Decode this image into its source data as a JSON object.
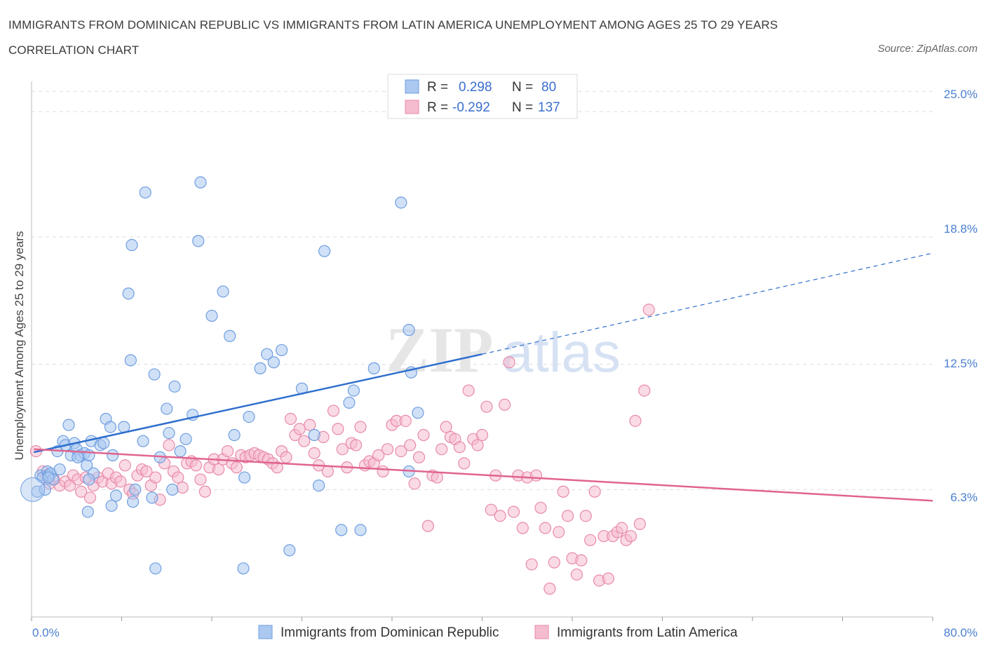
{
  "title": "IMMIGRANTS FROM DOMINICAN REPUBLIC VS IMMIGRANTS FROM LATIN AMERICA UNEMPLOYMENT AMONG AGES 25 TO 29 YEARS CORRELATION CHART",
  "source": "Source: ZipAtlas.com",
  "watermark": {
    "zip": "ZIP",
    "atlas": "atlas"
  },
  "colors": {
    "blue_fill": "#aac8f0",
    "blue_stroke": "#6f9ee0",
    "blue_line": "#2f6fce",
    "pink_fill": "#f5bcd0",
    "pink_stroke": "#e88aaa",
    "pink_line": "#e0648f",
    "axis_text": "#4a7fcf",
    "grid": "#dddddd"
  },
  "stats": [
    {
      "r_label": "R =",
      "r_value": "0.298",
      "n_label": "N =",
      "n_value": "80"
    },
    {
      "r_label": "R =",
      "r_value": "-0.292",
      "n_label": "N =",
      "n_value": "137"
    }
  ],
  "chart_data": {
    "type": "scatter",
    "title": "IMMIGRANTS FROM DOMINICAN REPUBLIC VS IMMIGRANTS FROM LATIN AMERICA UNEMPLOYMENT AMONG AGES 25 TO 29 YEARS CORRELATION CHART",
    "xlabel": "",
    "ylabel": "Unemployment Among Ages 25 to 29 years",
    "xlim": [
      0,
      80
    ],
    "ylim": [
      0,
      26.5
    ],
    "x_tick_labels": [
      "0.0%",
      "80.0%"
    ],
    "y_ticks": [
      6.3,
      12.5,
      18.8,
      25.0
    ],
    "y_tick_labels": [
      "6.3%",
      "12.5%",
      "18.8%",
      "25.0%"
    ],
    "grid": true,
    "legend_position": "bottom",
    "series": [
      {
        "name": "Immigrants from Dominican Republic",
        "color": "#6f9ee0",
        "trend": {
          "x0": 0.2,
          "y0": 8.15,
          "x1": 40,
          "y1": 13.0,
          "dashed_to_x": 80,
          "dashed_to_y": 18.0
        },
        "points": [
          [
            0.5,
            6.2
          ],
          [
            0.8,
            7.0
          ],
          [
            1.0,
            6.9
          ],
          [
            1.2,
            6.3
          ],
          [
            1.4,
            7.2
          ],
          [
            1.5,
            7.0
          ],
          [
            1.7,
            7.1
          ],
          [
            1.9,
            6.8
          ],
          [
            2.3,
            8.2
          ],
          [
            2.5,
            7.3
          ],
          [
            2.8,
            8.7
          ],
          [
            3.0,
            8.5
          ],
          [
            3.3,
            9.5
          ],
          [
            3.5,
            8.0
          ],
          [
            3.8,
            8.6
          ],
          [
            4.0,
            8.3
          ],
          [
            4.3,
            8.0
          ],
          [
            4.7,
            8.1
          ],
          [
            4.9,
            7.5
          ],
          [
            5.1,
            8.0
          ],
          [
            5.3,
            8.7
          ],
          [
            5.5,
            7.1
          ],
          [
            5.0,
            5.2
          ],
          [
            6.1,
            8.5
          ],
          [
            6.6,
            9.8
          ],
          [
            7.1,
            5.5
          ],
          [
            7.5,
            6.0
          ],
          [
            7.0,
            9.4
          ],
          [
            8.2,
            9.4
          ],
          [
            8.8,
            12.7
          ],
          [
            9.0,
            5.7
          ],
          [
            9.2,
            6.3
          ],
          [
            8.6,
            16.0
          ],
          [
            8.9,
            18.4
          ],
          [
            10.1,
            21.0
          ],
          [
            11.4,
            7.9
          ],
          [
            10.9,
            12.0
          ],
          [
            12.0,
            10.3
          ],
          [
            12.5,
            6.3
          ],
          [
            12.2,
            9.1
          ],
          [
            13.2,
            8.2
          ],
          [
            13.7,
            8.8
          ],
          [
            14.3,
            10.0
          ],
          [
            14.8,
            18.6
          ],
          [
            15.0,
            21.5
          ],
          [
            16.0,
            14.9
          ],
          [
            17.0,
            16.1
          ],
          [
            17.6,
            13.9
          ],
          [
            18.0,
            9.0
          ],
          [
            18.8,
            2.4
          ],
          [
            19.3,
            9.9
          ],
          [
            20.3,
            12.3
          ],
          [
            20.9,
            13.0
          ],
          [
            21.5,
            12.6
          ],
          [
            22.2,
            13.2
          ],
          [
            22.9,
            3.3
          ],
          [
            24.0,
            11.3
          ],
          [
            25.1,
            9.0
          ],
          [
            25.5,
            6.5
          ],
          [
            26.0,
            18.1
          ],
          [
            27.5,
            4.3
          ],
          [
            28.6,
            11.2
          ],
          [
            28.2,
            10.6
          ],
          [
            29.2,
            4.3
          ],
          [
            30.4,
            12.3
          ],
          [
            32.8,
            20.5
          ],
          [
            33.7,
            12.1
          ],
          [
            33.5,
            14.2
          ],
          [
            34.3,
            10.1
          ],
          [
            33.5,
            7.2
          ],
          [
            10.7,
            5.9
          ],
          [
            5.1,
            6.8
          ],
          [
            9.9,
            8.7
          ],
          [
            18.9,
            6.9
          ],
          [
            12.7,
            11.4
          ],
          [
            6.4,
            8.6
          ],
          [
            1.5,
            6.9
          ],
          [
            4.1,
            7.9
          ],
          [
            7.2,
            8.0
          ],
          [
            11.0,
            2.4
          ]
        ]
      },
      {
        "name": "Immigrants from Latin America",
        "color": "#e88aaa",
        "trend": {
          "x0": 0.2,
          "y0": 8.3,
          "x1": 80,
          "y1": 5.75
        },
        "points": [
          [
            0.4,
            8.2
          ],
          [
            1.0,
            7.2
          ],
          [
            1.3,
            7.0
          ],
          [
            1.6,
            6.6
          ],
          [
            2.0,
            6.8
          ],
          [
            2.5,
            6.5
          ],
          [
            3.0,
            6.7
          ],
          [
            3.4,
            6.5
          ],
          [
            3.7,
            7.0
          ],
          [
            4.1,
            6.8
          ],
          [
            4.4,
            6.2
          ],
          [
            4.8,
            6.9
          ],
          [
            5.2,
            5.9
          ],
          [
            5.5,
            6.5
          ],
          [
            5.9,
            6.9
          ],
          [
            6.3,
            6.7
          ],
          [
            6.8,
            7.1
          ],
          [
            7.1,
            6.6
          ],
          [
            7.5,
            6.9
          ],
          [
            7.9,
            6.7
          ],
          [
            8.3,
            7.5
          ],
          [
            8.7,
            6.3
          ],
          [
            9.0,
            6.1
          ],
          [
            9.4,
            7.0
          ],
          [
            9.8,
            7.3
          ],
          [
            10.2,
            7.2
          ],
          [
            10.6,
            6.5
          ],
          [
            11.0,
            6.9
          ],
          [
            11.4,
            5.8
          ],
          [
            11.8,
            7.6
          ],
          [
            12.2,
            8.5
          ],
          [
            12.6,
            7.2
          ],
          [
            13.0,
            6.9
          ],
          [
            13.4,
            6.4
          ],
          [
            13.8,
            7.6
          ],
          [
            14.2,
            7.7
          ],
          [
            14.6,
            7.5
          ],
          [
            15.0,
            6.8
          ],
          [
            15.4,
            6.2
          ],
          [
            15.8,
            7.4
          ],
          [
            16.2,
            7.8
          ],
          [
            16.6,
            7.3
          ],
          [
            17.0,
            7.8
          ],
          [
            17.4,
            8.2
          ],
          [
            17.8,
            7.6
          ],
          [
            18.2,
            7.4
          ],
          [
            18.6,
            8.0
          ],
          [
            19.0,
            7.9
          ],
          [
            19.4,
            8.0
          ],
          [
            19.8,
            8.1
          ],
          [
            20.2,
            8.0
          ],
          [
            20.6,
            7.9
          ],
          [
            21.0,
            7.8
          ],
          [
            21.4,
            7.6
          ],
          [
            21.8,
            7.4
          ],
          [
            22.2,
            8.2
          ],
          [
            22.6,
            7.9
          ],
          [
            23.0,
            9.8
          ],
          [
            23.4,
            9.0
          ],
          [
            23.8,
            9.3
          ],
          [
            24.2,
            8.7
          ],
          [
            24.7,
            9.5
          ],
          [
            25.1,
            8.1
          ],
          [
            25.5,
            7.5
          ],
          [
            25.9,
            8.9
          ],
          [
            26.3,
            7.2
          ],
          [
            26.8,
            10.2
          ],
          [
            27.2,
            9.3
          ],
          [
            27.6,
            8.3
          ],
          [
            28.0,
            7.4
          ],
          [
            28.4,
            8.6
          ],
          [
            28.8,
            8.5
          ],
          [
            29.2,
            9.4
          ],
          [
            29.6,
            7.5
          ],
          [
            30.0,
            7.7
          ],
          [
            30.4,
            7.6
          ],
          [
            30.8,
            8.0
          ],
          [
            31.2,
            7.2
          ],
          [
            31.6,
            8.3
          ],
          [
            32.0,
            9.5
          ],
          [
            32.4,
            9.7
          ],
          [
            32.8,
            8.2
          ],
          [
            33.2,
            9.7
          ],
          [
            33.6,
            8.5
          ],
          [
            34.0,
            6.6
          ],
          [
            34.4,
            7.9
          ],
          [
            34.8,
            9.0
          ],
          [
            35.2,
            4.5
          ],
          [
            35.6,
            7.0
          ],
          [
            36.0,
            6.9
          ],
          [
            36.4,
            8.3
          ],
          [
            36.8,
            9.4
          ],
          [
            37.2,
            8.9
          ],
          [
            37.6,
            8.8
          ],
          [
            38.0,
            8.4
          ],
          [
            38.4,
            7.6
          ],
          [
            38.8,
            11.2
          ],
          [
            39.2,
            8.8
          ],
          [
            39.6,
            8.5
          ],
          [
            40.0,
            9.0
          ],
          [
            40.4,
            10.4
          ],
          [
            40.8,
            5.3
          ],
          [
            41.2,
            7.0
          ],
          [
            41.6,
            5.0
          ],
          [
            42.0,
            10.5
          ],
          [
            42.4,
            12.6
          ],
          [
            42.8,
            5.2
          ],
          [
            43.2,
            7.0
          ],
          [
            43.6,
            4.4
          ],
          [
            44.0,
            6.9
          ],
          [
            44.4,
            2.6
          ],
          [
            44.8,
            7.0
          ],
          [
            45.2,
            5.4
          ],
          [
            45.6,
            4.4
          ],
          [
            46.0,
            1.4
          ],
          [
            46.4,
            2.7
          ],
          [
            46.8,
            4.2
          ],
          [
            47.2,
            6.2
          ],
          [
            47.6,
            5.0
          ],
          [
            48.0,
            2.9
          ],
          [
            48.4,
            2.1
          ],
          [
            48.8,
            2.8
          ],
          [
            49.2,
            5.0
          ],
          [
            49.6,
            3.8
          ],
          [
            50.0,
            6.2
          ],
          [
            50.4,
            1.8
          ],
          [
            50.8,
            4.0
          ],
          [
            51.2,
            1.9
          ],
          [
            51.6,
            4.0
          ],
          [
            52.0,
            4.2
          ],
          [
            52.4,
            4.4
          ],
          [
            52.8,
            3.8
          ],
          [
            53.2,
            4.0
          ],
          [
            53.6,
            9.7
          ],
          [
            54.0,
            4.6
          ],
          [
            54.4,
            11.2
          ],
          [
            54.8,
            15.2
          ]
        ]
      }
    ]
  },
  "legend": [
    {
      "label": "Immigrants from Dominican Republic"
    },
    {
      "label": "Immigrants from Latin America"
    }
  ]
}
